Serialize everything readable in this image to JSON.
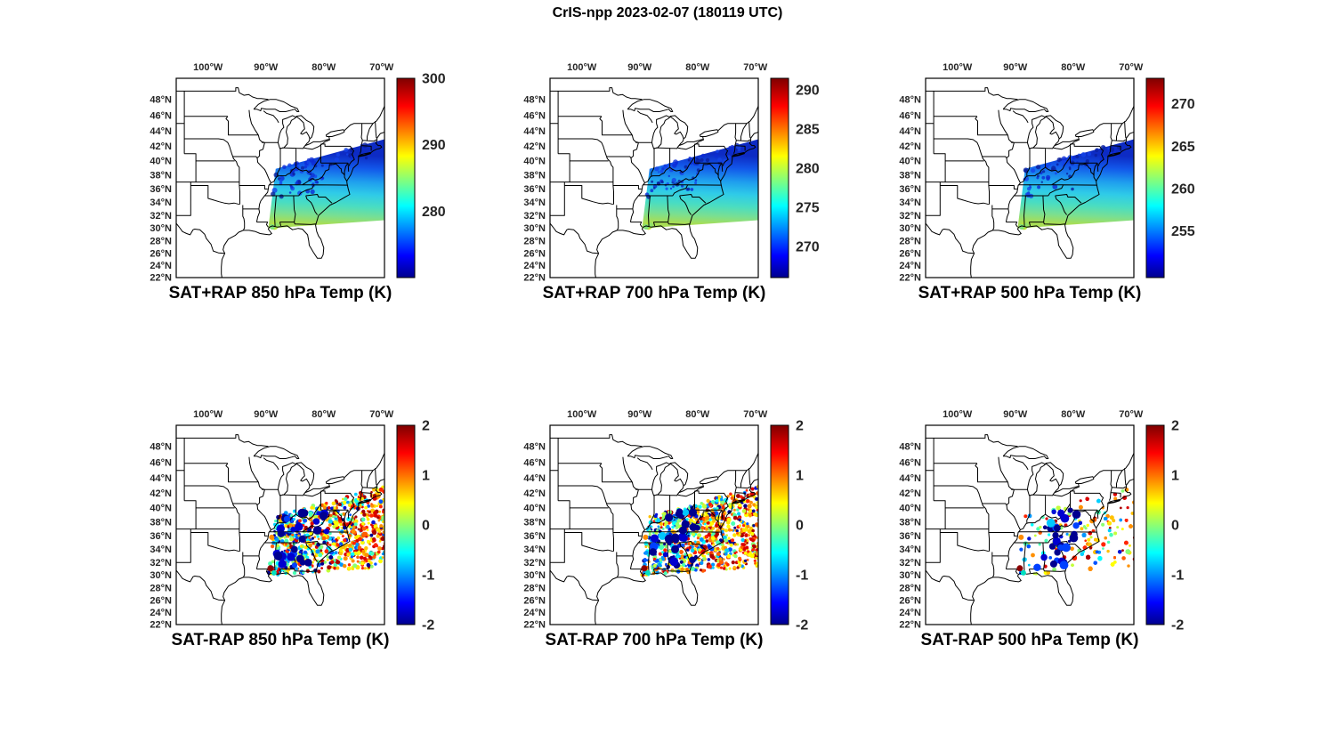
{
  "figure_title": "CrIS-npp 2023-02-07 (180119 UTC)",
  "satellite": "CrIS-npp",
  "date": "2023-02-07",
  "time_utc": "180119 UTC",
  "axis": {
    "lon_ticks": [
      "100°W",
      "90°W",
      "80°W",
      "70°W"
    ],
    "lon_tick_values": [
      -100,
      -90,
      -80,
      -70
    ],
    "lat_ticks": [
      "48°N",
      "46°N",
      "44°N",
      "42°N",
      "40°N",
      "38°N",
      "36°N",
      "34°N",
      "32°N",
      "30°N",
      "28°N",
      "26°N",
      "24°N",
      "22°N"
    ],
    "lat_tick_values": [
      48,
      46,
      44,
      42,
      40,
      38,
      36,
      34,
      32,
      30,
      28,
      26,
      24,
      22
    ]
  },
  "chart_data": [
    {
      "type": "heatmap",
      "id": "sat-plus-rap-850",
      "kind": "temp",
      "title": "SAT+RAP 850 hPa Temp (K)",
      "x_axis": "longitude",
      "y_axis": "latitude",
      "map_region": {
        "lon": [
          -105.5,
          -69.5
        ],
        "lat": [
          22,
          50.5
        ]
      },
      "colorbar": {
        "range": [
          270,
          300
        ],
        "ticks": [
          300,
          290,
          280
        ],
        "colormap": "jet",
        "units": "K"
      },
      "summary": "CrIS+RAP 850 hPa temperatures along a SW-NE satellite swath from the lower Mississippi valley across the Carolinas into the western Atlantic; ~275-287 K, coldest (dark blue) along the northwest edge, green (~286 K) near the Gulf coast at ~30N."
    },
    {
      "type": "heatmap",
      "id": "sat-plus-rap-700",
      "kind": "temp",
      "title": "SAT+RAP 700 hPa Temp (K)",
      "x_axis": "longitude",
      "y_axis": "latitude",
      "map_region": {
        "lon": [
          -105.5,
          -69.5
        ],
        "lat": [
          22,
          50.5
        ]
      },
      "colorbar": {
        "range": [
          266,
          291.5
        ],
        "ticks": [
          290,
          285,
          280,
          275,
          270
        ],
        "colormap": "jet",
        "units": "K"
      },
      "summary": "CrIS+RAP 700 hPa temperatures over the same swath; ~270-281 K, dark blue along the northern edge grading to green near the Gulf coast."
    },
    {
      "type": "heatmap",
      "id": "sat-plus-rap-500",
      "kind": "temp",
      "title": "SAT+RAP 500 hPa Temp (K)",
      "x_axis": "longitude",
      "y_axis": "latitude",
      "map_region": {
        "lon": [
          -105.5,
          -69.5
        ],
        "lat": [
          22,
          50.5
        ]
      },
      "colorbar": {
        "range": [
          249.5,
          273
        ],
        "ticks": [
          270,
          265,
          260,
          255
        ],
        "colormap": "jet",
        "units": "K"
      },
      "summary": "CrIS+RAP 500 hPa temperatures over the same swath; ~252-262 K, coldest dark blue to the northeast, green values near the swath's southern edge."
    },
    {
      "type": "heatmap",
      "id": "sat-minus-rap-850",
      "kind": "diff",
      "title": "SAT-RAP 850 hPa Temp (K)",
      "x_axis": "longitude",
      "y_axis": "latitude",
      "map_region": {
        "lon": [
          -105.5,
          -69.5
        ],
        "lat": [
          22,
          50.5
        ]
      },
      "colorbar": {
        "range": [
          -2,
          2
        ],
        "ticks": [
          2,
          1,
          0,
          -1,
          -2
        ],
        "colormap": "jet",
        "units": "K"
      },
      "summary": "SAT minus RAP 850 hPa differences, mostly within +/-2 K; mixed cyan/blue/yellow speckle with clusters of large dark-blue (~-2 K) spots over Tennessee/Georgia, predominantly orange/red (+1 to +2 K) over the Atlantic part of the swath."
    },
    {
      "type": "heatmap",
      "id": "sat-minus-rap-700",
      "kind": "diff",
      "title": "SAT-RAP 700 hPa Temp (K)",
      "x_axis": "longitude",
      "y_axis": "latitude",
      "map_region": {
        "lon": [
          -105.5,
          -69.5
        ],
        "lat": [
          22,
          50.5
        ]
      },
      "colorbar": {
        "range": [
          -2,
          2
        ],
        "ticks": [
          2,
          1,
          0,
          -1,
          -2
        ],
        "colormap": "jet",
        "units": "K"
      },
      "summary": "SAT minus RAP 700 hPa differences within +/-2 K; scattered large negative (dark blue) dots over the southeast US, positive (orange/red) differences dominating offshore."
    },
    {
      "type": "heatmap",
      "id": "sat-minus-rap-500",
      "kind": "diff",
      "title": "SAT-RAP 500 hPa Temp (K)",
      "x_axis": "longitude",
      "y_axis": "latitude",
      "map_region": {
        "lon": [
          -105.5,
          -69.5
        ],
        "lat": [
          22,
          50.5
        ]
      },
      "colorbar": {
        "range": [
          -2,
          2
        ],
        "ticks": [
          2,
          1,
          0,
          -1,
          -2
        ],
        "colormap": "jet",
        "units": "K"
      },
      "summary": "SAT minus RAP 500 hPa differences within +/-2 K; warm (yellow/orange/red) speckle widespread with interspersed dark-blue negative spots over land."
    }
  ]
}
